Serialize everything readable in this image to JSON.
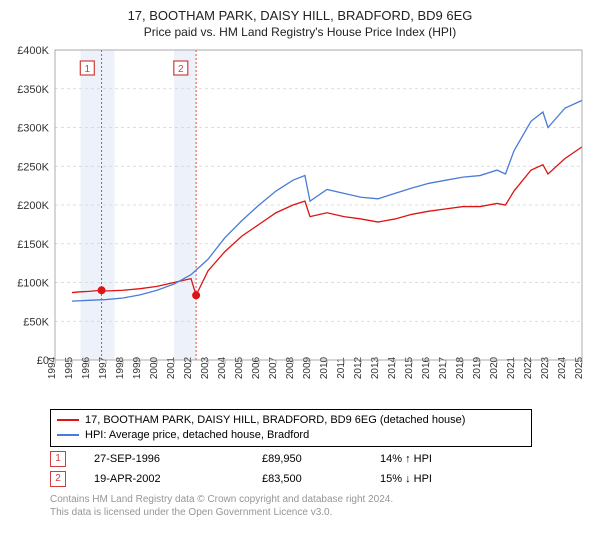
{
  "title": "17, BOOTHAM PARK, DAISY HILL, BRADFORD, BD9 6EG",
  "subtitle": "Price paid vs. HM Land Registry's House Price Index (HPI)",
  "chart": {
    "type": "line",
    "background_color": "#ffffff",
    "grid_color": "#d3d3d3",
    "border_color": "#999999",
    "title_fontsize": 13,
    "subtitle_fontsize": 12,
    "tick_fontsize": 11,
    "xlim": [
      1994,
      2025
    ],
    "ylim": [
      0,
      400000
    ],
    "ytick_step": 50000,
    "yticks": [
      0,
      50000,
      100000,
      150000,
      200000,
      250000,
      300000,
      350000,
      400000
    ],
    "ytick_labels": [
      "£0",
      "£50K",
      "£100K",
      "£150K",
      "£200K",
      "£250K",
      "£300K",
      "£350K",
      "£400K"
    ],
    "xticks": [
      1994,
      1995,
      1996,
      1997,
      1998,
      1999,
      2000,
      2001,
      2002,
      2003,
      2004,
      2005,
      2006,
      2007,
      2008,
      2009,
      2010,
      2011,
      2012,
      2013,
      2014,
      2015,
      2016,
      2017,
      2018,
      2019,
      2020,
      2021,
      2022,
      2023,
      2024,
      2025
    ],
    "shaded_ranges": [
      {
        "start": 1995.5,
        "end": 1997.5,
        "ref_x": 1996.74,
        "marker": "1",
        "marker_box_x": 1995.9
      },
      {
        "start": 2001.0,
        "end": 2002.3,
        "ref_x": 2002.3,
        "marker": "2",
        "marker_box_x": 2001.4
      }
    ],
    "series": [
      {
        "name": "17, BOOTHAM PARK, DAISY HILL, BRADFORD, BD9 6EG (detached house)",
        "color": "#dc1414",
        "line_width": 1.3,
        "x": [
          1995,
          1995.5,
          1996,
          1996.74,
          1997,
          1998,
          1999,
          2000,
          2001,
          2002,
          2002.3,
          2003,
          2004,
          2005,
          2006,
          2007,
          2008,
          2008.7,
          2009,
          2010,
          2011,
          2012,
          2013,
          2014,
          2015,
          2016,
          2017,
          2018,
          2019,
          2020,
          2020.5,
          2021,
          2022,
          2022.7,
          2023,
          2024,
          2025
        ],
        "y": [
          87000,
          88000,
          88500,
          89950,
          89000,
          90000,
          92000,
          95000,
          100000,
          105000,
          83500,
          115000,
          140000,
          160000,
          175000,
          190000,
          200000,
          205000,
          185000,
          190000,
          185000,
          182000,
          178000,
          182000,
          188000,
          192000,
          195000,
          198000,
          198000,
          202000,
          200000,
          218000,
          245000,
          252000,
          240000,
          260000,
          275000
        ],
        "markers": [
          {
            "x": 1996.74,
            "y": 89950,
            "r": 3.5
          },
          {
            "x": 2002.3,
            "y": 83500,
            "r": 3.5
          }
        ]
      },
      {
        "name": "HPI: Average price, detached house, Bradford",
        "color": "#4a7cd6",
        "line_width": 1.3,
        "x": [
          1995,
          1996,
          1997,
          1998,
          1999,
          2000,
          2001,
          2002,
          2003,
          2004,
          2005,
          2006,
          2007,
          2008,
          2008.7,
          2009,
          2010,
          2011,
          2012,
          2013,
          2014,
          2015,
          2016,
          2017,
          2018,
          2019,
          2020,
          2020.5,
          2021,
          2022,
          2022.7,
          2023,
          2024,
          2025
        ],
        "y": [
          76000,
          77000,
          78000,
          80000,
          84000,
          90000,
          98000,
          110000,
          130000,
          158000,
          180000,
          200000,
          218000,
          232000,
          238000,
          205000,
          220000,
          215000,
          210000,
          208000,
          215000,
          222000,
          228000,
          232000,
          236000,
          238000,
          245000,
          240000,
          270000,
          308000,
          320000,
          300000,
          325000,
          335000
        ]
      }
    ]
  },
  "legend": {
    "border_color": "#000000",
    "items": [
      {
        "color": "#dc1414",
        "label": "17, BOOTHAM PARK, DAISY HILL, BRADFORD, BD9 6EG (detached house)"
      },
      {
        "color": "#4a7cd6",
        "label": "HPI: Average price, detached house, Bradford"
      }
    ]
  },
  "transactions": [
    {
      "marker": "1",
      "date": "27-SEP-1996",
      "price": "£89,950",
      "diff": "14% ↑ HPI"
    },
    {
      "marker": "2",
      "date": "19-APR-2002",
      "price": "£83,500",
      "diff": "15% ↓ HPI"
    }
  ],
  "footer_line1": "Contains HM Land Registry data © Crown copyright and database right 2024.",
  "footer_line2": "This data is licensed under the Open Government Licence v3.0."
}
